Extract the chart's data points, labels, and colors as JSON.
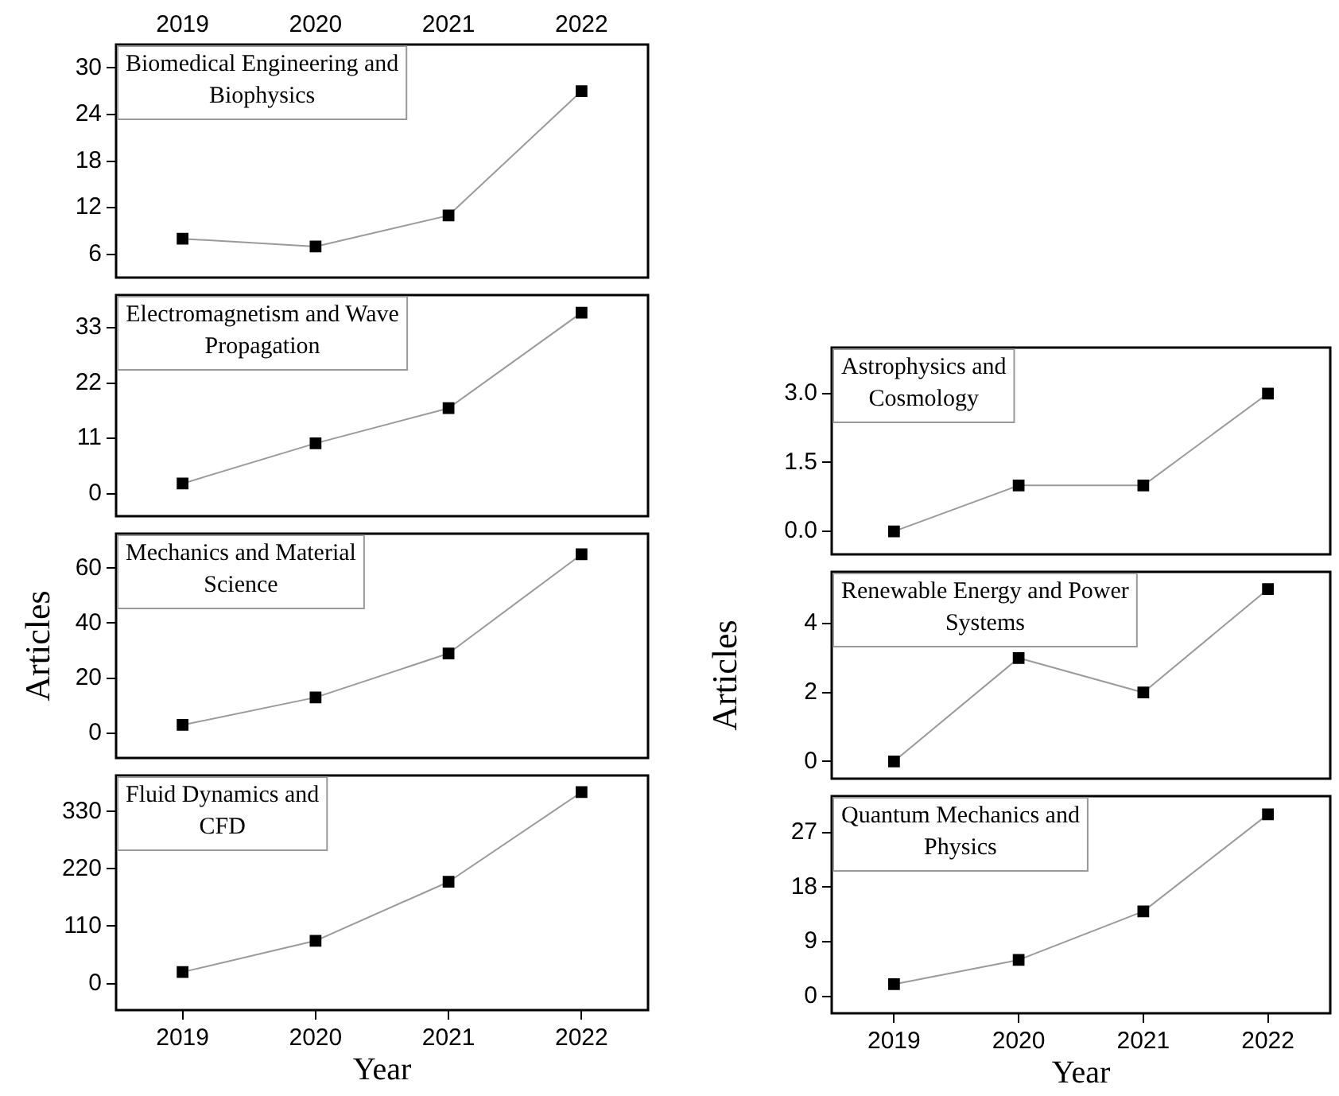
{
  "chart_data": [
    {
      "type": "line",
      "title": "Biomedical Engineering and Biophysics",
      "xlim": [
        2018.5,
        2022.5
      ],
      "xticks": [
        2019,
        2020,
        2021,
        2022
      ],
      "ylim": [
        3,
        33
      ],
      "yticks": [
        6,
        12,
        18,
        24,
        30
      ],
      "marker": "square",
      "line_style": "solid",
      "series": [
        {
          "color": "#000000",
          "x": [
            2019,
            2020,
            2021,
            2022
          ],
          "values": [
            8,
            7,
            11,
            27
          ]
        }
      ]
    },
    {
      "type": "line",
      "title": "Electromagnetism and Wave Propagation",
      "xlim": [
        2018.5,
        2022.5
      ],
      "ylim": [
        -4.5,
        39.5
      ],
      "yticks": [
        0,
        11,
        22,
        33
      ],
      "tick_labels": "y",
      "marker": "square",
      "line_style": "solid",
      "series": [
        {
          "color": "#000000",
          "x": [
            2019,
            2020,
            2021,
            2022
          ],
          "values": [
            2,
            10,
            17,
            36
          ]
        }
      ]
    },
    {
      "type": "line",
      "title": "Mechanics and Material Science",
      "ylabel": "Articles",
      "xlim": [
        2018.5,
        2022.5
      ],
      "ylim": [
        -9,
        72.5
      ],
      "yticks": [
        0,
        20,
        40,
        60
      ],
      "tick_labels": "y",
      "marker": "square",
      "line_style": "solid",
      "series": [
        {
          "color": "#000000",
          "x": [
            2019,
            2020,
            2021,
            2022
          ],
          "values": [
            3,
            13,
            29,
            65
          ]
        }
      ]
    },
    {
      "type": "line",
      "title": "Fluid Dynamics and CFD",
      "xlabel": "Year",
      "xlim": [
        2018.5,
        2022.5
      ],
      "xticks": [
        2019,
        2020,
        2021,
        2022
      ],
      "ylim": [
        -51,
        399
      ],
      "yticks": [
        0,
        110,
        220,
        330
      ],
      "marker": "square",
      "line_style": "solid",
      "series": [
        {
          "color": "#000000",
          "x": [
            2019,
            2020,
            2021,
            2022
          ],
          "values": [
            22,
            82,
            195,
            367
          ]
        }
      ]
    },
    {
      "type": "line",
      "title": "Astrophysics and Cosmology",
      "xlim": [
        2018.5,
        2022.5
      ],
      "ylim": [
        -0.5,
        4
      ],
      "yticks": [
        {
          "value": 0,
          "label": "0.0"
        },
        1.5,
        {
          "value": 3,
          "label": "3.0"
        }
      ],
      "tick_labels": "y",
      "marker": "square",
      "line_style": "solid",
      "series": [
        {
          "color": "#000000",
          "x": [
            2019,
            2020,
            2021,
            2022
          ],
          "values": [
            0,
            1,
            1,
            3
          ]
        }
      ]
    },
    {
      "type": "line",
      "title": "Renewable Energy and Power Systems",
      "ylabel": "Articles",
      "xlim": [
        2018.5,
        2022.5
      ],
      "ylim": [
        -0.5,
        5.5
      ],
      "yticks": [
        0,
        2,
        4
      ],
      "tick_labels": "y",
      "marker": "square",
      "line_style": "solid",
      "series": [
        {
          "color": "#000000",
          "x": [
            2019,
            2020,
            2021,
            2022
          ],
          "values": [
            0,
            3,
            2,
            5
          ]
        }
      ]
    },
    {
      "type": "line",
      "title": "Quantum Mechanics and Physics",
      "xlabel": "Year",
      "xlim": [
        2018.5,
        2022.5
      ],
      "xticks": [
        2019,
        2020,
        2021,
        2022
      ],
      "ylim": [
        -2.8,
        33
      ],
      "yticks": [
        0,
        9,
        18,
        27
      ],
      "marker": "square",
      "line_style": "solid",
      "series": [
        {
          "color": "#000000",
          "x": [
            2019,
            2020,
            2021,
            2022
          ],
          "values": [
            2,
            6,
            14,
            30
          ]
        }
      ]
    }
  ]
}
